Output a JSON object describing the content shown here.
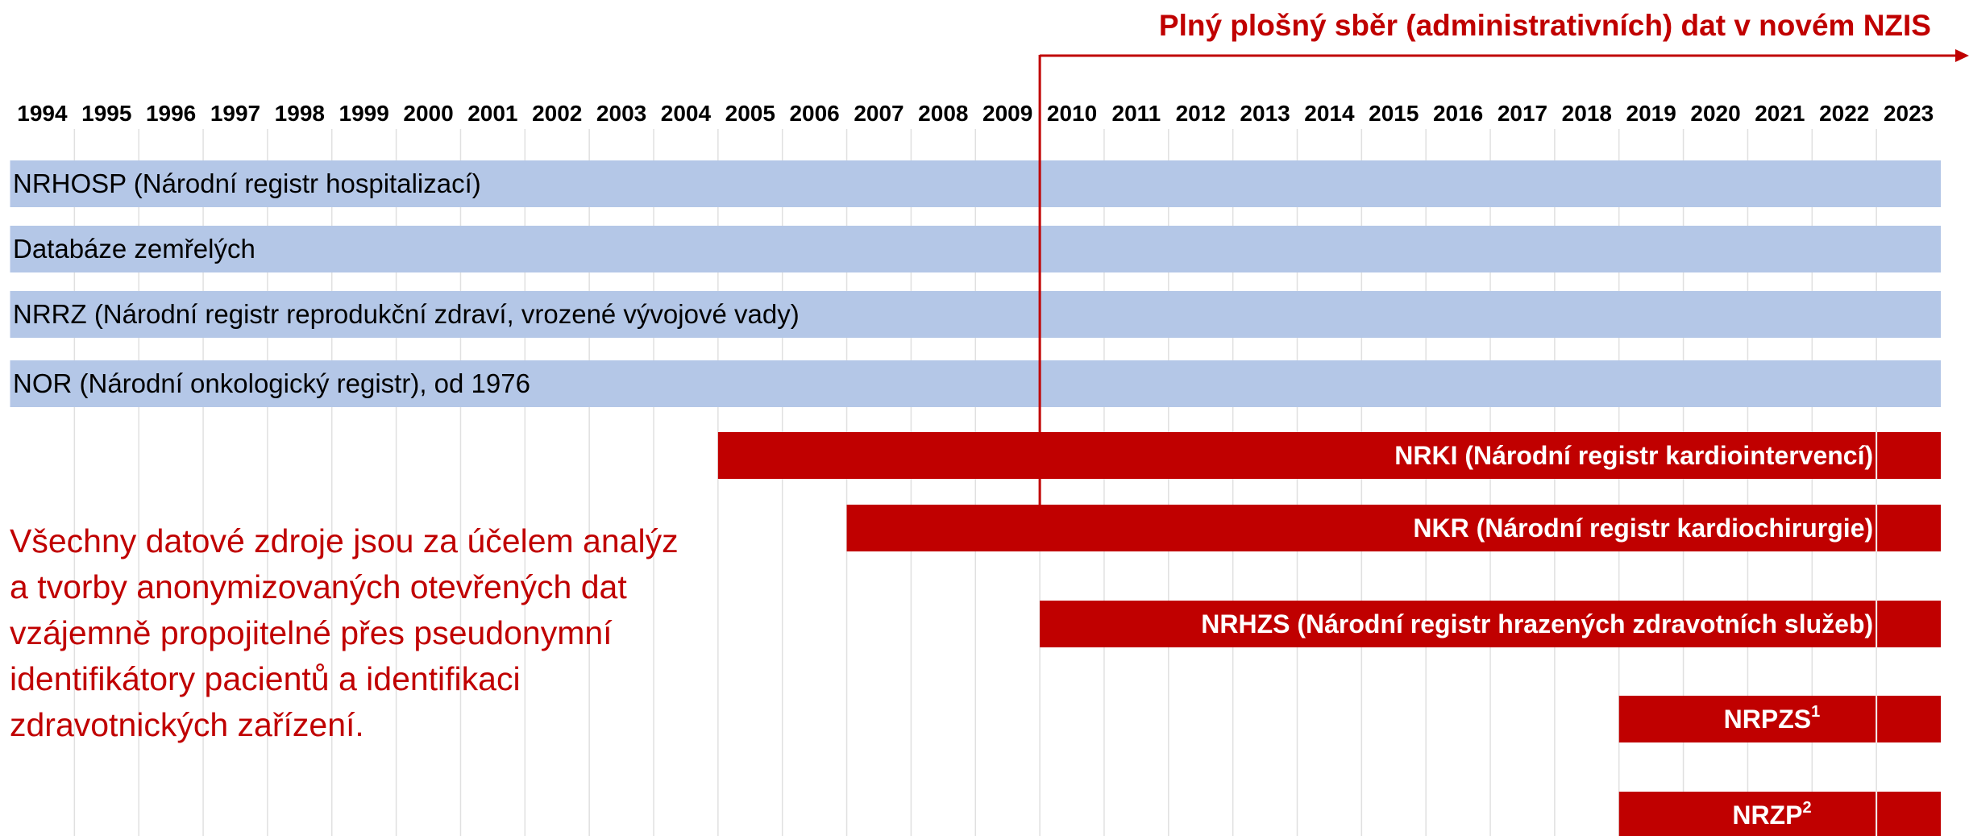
{
  "title": "Plný plošný sběr (administrativních) dat v novém NZIS",
  "years": [
    1994,
    1995,
    1996,
    1997,
    1998,
    1999,
    2000,
    2001,
    2002,
    2003,
    2004,
    2005,
    2006,
    2007,
    2008,
    2009,
    2010,
    2011,
    2012,
    2013,
    2014,
    2015,
    2016,
    2017,
    2018,
    2019,
    2020,
    2021,
    2022,
    2023
  ],
  "bars": [
    {
      "label": "NRHOSP (Národní registr hospitalizací)",
      "start": 1994,
      "kind": "blue"
    },
    {
      "label": "Databáze zemřelých",
      "start": 1994,
      "kind": "blue"
    },
    {
      "label": "NRRZ (Národní registr reprodukční zdraví, vrozené vývojové vady)",
      "start": 1994,
      "kind": "blue"
    },
    {
      "label": "NOR (Národní onkologický registr), od 1976",
      "start": 1994,
      "kind": "blue"
    },
    {
      "label": "NRKI (Národní registr kardiointervencí)",
      "start": 2005,
      "kind": "red"
    },
    {
      "label": "NKR (Národní registr kardiochirurgie)",
      "start": 2007,
      "kind": "red"
    },
    {
      "label": "NRHZS (Národní registr hrazených zdravotních služeb)",
      "start": 2010,
      "kind": "red"
    },
    {
      "label": "NRPZS",
      "sup": "1",
      "start": 2019,
      "kind": "red"
    },
    {
      "label": "NRZP",
      "sup": "2",
      "start": 2019,
      "kind": "red"
    }
  ],
  "note": [
    "Všechny datové zdroje jsou za účelem analýz",
    "a tvorby anonymizovaných otevřených dat",
    "vzájemně propojitelné přes pseudonymní",
    "identifikátory pacientů a identifikaci",
    "zdravotnických zařízení."
  ]
}
